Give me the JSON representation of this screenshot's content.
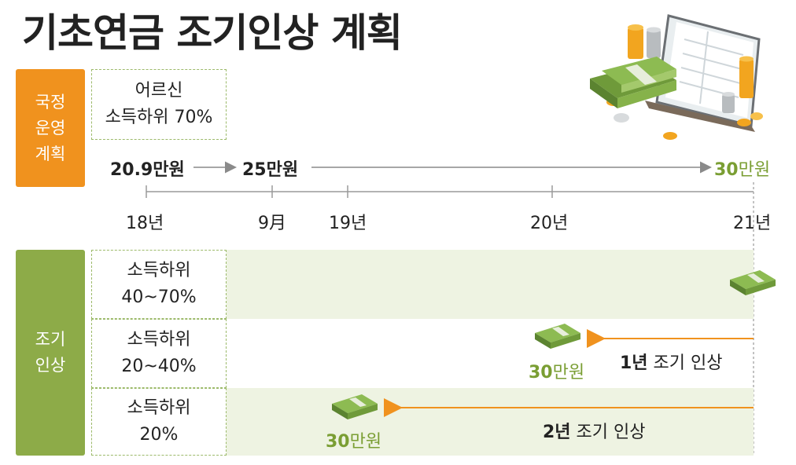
{
  "title": "기초연금 조기인상 계획",
  "national_plan": {
    "label_lines": [
      "국정",
      "운영",
      "계획"
    ],
    "target_lines": [
      "어르신",
      "소득하위 70%"
    ]
  },
  "timeline": {
    "amounts": [
      {
        "num": "20.9",
        "unit": "만원"
      },
      {
        "num": "25",
        "unit": "만원"
      },
      {
        "num": "30",
        "unit": "만원"
      }
    ],
    "ticks": [
      "18년",
      "9月",
      "19년",
      "20년",
      "21년"
    ]
  },
  "early_raise": {
    "label_lines": [
      "조기",
      "인상"
    ],
    "rows": [
      {
        "lines": [
          "소득하위",
          "40~70%"
        ]
      },
      {
        "lines": [
          "소득하위",
          "20~40%"
        ],
        "raise": {
          "num": "1년",
          "text": " 조기 인상"
        },
        "money": {
          "num": "30",
          "unit": "만원"
        }
      },
      {
        "lines": [
          "소득하위",
          "20%"
        ],
        "raise": {
          "num": "2년",
          "text": " 조기 인상"
        },
        "money": {
          "num": "30",
          "unit": "만원"
        }
      }
    ]
  },
  "colors": {
    "orange": "#f0921e",
    "green": "#8dab48",
    "band": "#eef3e2",
    "money_green": "#7a9e33"
  }
}
